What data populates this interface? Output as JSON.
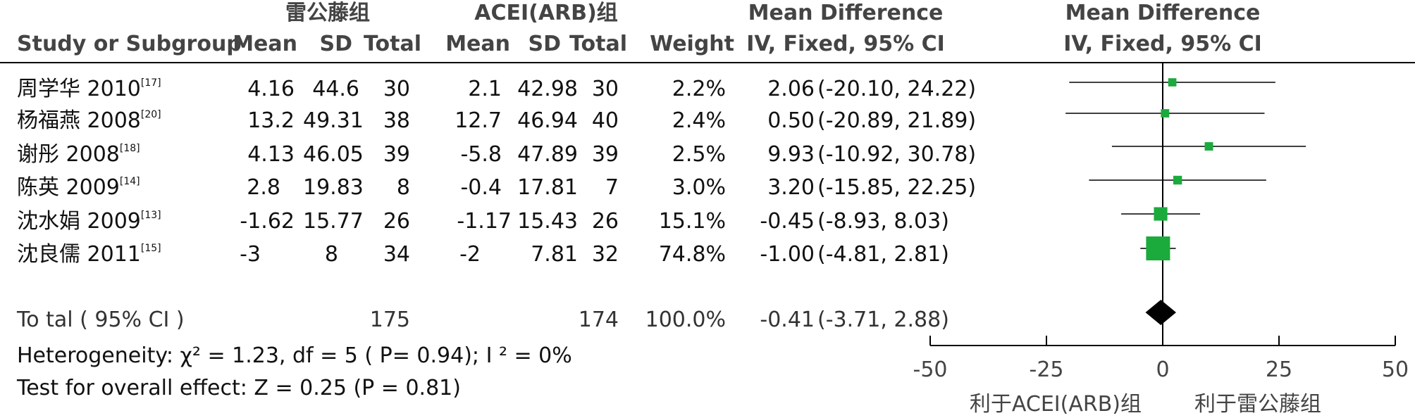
{
  "group_headers": {
    "experimental": "雷公藤组",
    "control": "ACEI(ARB)组"
  },
  "effect_header": {
    "line1": "Mean Difference",
    "line2": "IV, Fixed, 95% CI"
  },
  "plot_header": {
    "line1": "Mean Difference",
    "line2": "IV, Fixed, 95% CI"
  },
  "columns": {
    "study": "Study or Subgroup",
    "exp_mean": "Mean",
    "exp_sd": "SD",
    "exp_total": "Total",
    "ctl_mean": "Mean",
    "ctl_sd": "SD",
    "ctl_total": "Total",
    "weight": "Weight"
  },
  "studies": [
    {
      "name": "周学华 2010",
      "ref": "[17]",
      "exp_mean": "4.16",
      "exp_sd": "44.6",
      "exp_total": "30",
      "ctl_mean": "2.1",
      "ctl_sd": "42.98",
      "ctl_total": "30",
      "weight": "2.2%",
      "md": "2.06",
      "ci": "(-20.10, 24.22)"
    },
    {
      "name": "杨福燕 2008",
      "ref": "[20]",
      "exp_mean": "13.2",
      "exp_sd": "49.31",
      "exp_total": "38",
      "ctl_mean": "12.7",
      "ctl_sd": "46.94",
      "ctl_total": "40",
      "weight": "2.4%",
      "md": "0.50",
      "ci": "(-20.89, 21.89)"
    },
    {
      "name": "谢彤 2008",
      "ref": "[18]",
      "exp_mean": "4.13",
      "exp_sd": "46.05",
      "exp_total": "39",
      "ctl_mean": "-5.8",
      "ctl_sd": "47.89",
      "ctl_total": "39",
      "weight": "2.5%",
      "md": "9.93",
      "ci": "(-10.92, 30.78)"
    },
    {
      "name": "陈英 2009",
      "ref": "[14]",
      "exp_mean": "2.8",
      "exp_sd": "19.83",
      "exp_total": "8",
      "ctl_mean": "-0.4",
      "ctl_sd": "17.81",
      "ctl_total": "7",
      "weight": "3.0%",
      "md": "3.20",
      "ci": "(-15.85, 22.25)"
    },
    {
      "name": "沈水娟 2009",
      "ref": "[13]",
      "exp_mean": "-1.62",
      "exp_sd": "15.77",
      "exp_total": "26",
      "ctl_mean": "-1.17",
      "ctl_sd": "15.43",
      "ctl_total": "26",
      "weight": "15.1%",
      "md": "-0.45",
      "ci": "(-8.93, 8.03)"
    },
    {
      "name": "沈良儒 2011",
      "ref": "[15]",
      "exp_mean": "-3",
      "exp_sd": "8",
      "exp_total": "34",
      "ctl_mean": "-2",
      "ctl_sd": "7.81",
      "ctl_total": "32",
      "weight": "74.8%",
      "md": "-1.00",
      "ci": "(-4.81, 2.81)"
    }
  ],
  "total": {
    "label": "To tal ( 95% CI )",
    "exp_total": "175",
    "ctl_total": "174",
    "weight": "100.0%",
    "md": "-0.41",
    "ci": "(-3.71, 2.88)"
  },
  "heterogeneity": "Heterogeneity:  χ² = 1.23, df = 5 (  P= 0.94); I ² = 0%",
  "overall_effect": "Test for overall effect: Z = 0.25 (P = 0.81)",
  "colors": {
    "square": "#1aab3c",
    "diamond": "#000000",
    "line": "#000000"
  },
  "chart_data": {
    "type": "forest",
    "x_ticks": [
      "-50",
      "-25",
      "0",
      "25",
      "50"
    ],
    "xlim": [
      -50,
      50
    ],
    "favours_left": "利于ACEI(ARB)组",
    "favours_right": "利于雷公藤组",
    "points": [
      {
        "md": 2.06,
        "lo": -20.1,
        "hi": 24.22,
        "weight": 2.2
      },
      {
        "md": 0.5,
        "lo": -20.89,
        "hi": 21.89,
        "weight": 2.4
      },
      {
        "md": 9.93,
        "lo": -10.92,
        "hi": 30.78,
        "weight": 2.5
      },
      {
        "md": 3.2,
        "lo": -15.85,
        "hi": 22.25,
        "weight": 3.0
      },
      {
        "md": -0.45,
        "lo": -8.93,
        "hi": 8.03,
        "weight": 15.1
      },
      {
        "md": -1.0,
        "lo": -4.81,
        "hi": 2.81,
        "weight": 74.8
      }
    ],
    "pooled": {
      "md": -0.41,
      "lo": -3.71,
      "hi": 2.88
    }
  }
}
